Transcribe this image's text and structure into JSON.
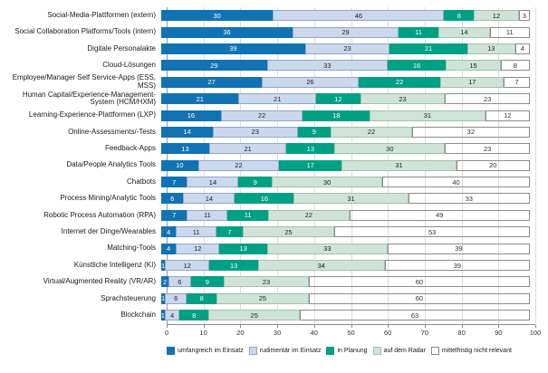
{
  "chart_data": {
    "type": "bar",
    "orientation": "horizontal",
    "stacked": true,
    "unit": "percent",
    "title": "",
    "xlabel": "",
    "ylabel": "",
    "xlim": [
      0,
      100
    ],
    "x_ticks": [
      0,
      10,
      20,
      30,
      40,
      50,
      60,
      70,
      80,
      90,
      100
    ],
    "grid": true,
    "legend_position": "bottom",
    "categories": [
      "Social-Media-Plattformen (extern)",
      "Social Collaboration Platforms/Tools (intern)",
      "Digitale Personalakte",
      "Cloud-Lösungen",
      "Employee/Manager Self Service-Apps (ESS, MSS)",
      "Human Capital/Experience-Manage­ment-System (HCM/HXM)",
      "Learning-Experience-Plattformen (LXP)",
      "Online-Assessments/-Tests",
      "Feedback-Apps",
      "Data/People Analytics Tools",
      "Chatbots",
      "Process Mining/Analytic Tools",
      "Robotic Process Automation (RPA)",
      "Internet der Dinge/Wearables",
      "Matching-Tools",
      "Künstliche Intelligenz (KI)",
      "Virtual/Augmented Reality (VR/AR)",
      "Sprachsteuerung",
      "Blockchain"
    ],
    "series": [
      {
        "key": "umfangreich-im-einsatz",
        "name": "umfangreich im Einsatz",
        "color": "#1173b3",
        "label_color": "#ffffff",
        "values": [
          30,
          36,
          39,
          29,
          27,
          21,
          16,
          14,
          13,
          10,
          7,
          6,
          7,
          4,
          4,
          1,
          2,
          1,
          1
        ]
      },
      {
        "key": "rudimentaer-im-einsatz",
        "name": "rudimentär im Einsatz",
        "color": "#ccd8ec",
        "border": "#8ea9cc",
        "label_color": "#1f1f1f",
        "values": [
          46,
          29,
          23,
          33,
          26,
          21,
          22,
          23,
          21,
          22,
          14,
          14,
          11,
          11,
          12,
          12,
          6,
          6,
          4
        ]
      },
      {
        "key": "in-planung",
        "name": "in Planung",
        "color": "#00a085",
        "label_color": "#ffffff",
        "values": [
          8,
          11,
          21,
          16,
          22,
          12,
          18,
          9,
          13,
          17,
          9,
          16,
          11,
          7,
          13,
          13,
          9,
          8,
          8
        ]
      },
      {
        "key": "auf-dem-radar",
        "name": "auf dem Radar",
        "color": "#cfe3d8",
        "border": "#9ec4ab",
        "label_color": "#1f1f1f",
        "values": [
          12,
          14,
          13,
          15,
          17,
          23,
          31,
          22,
          30,
          31,
          30,
          31,
          22,
          25,
          33,
          34,
          23,
          25,
          25
        ]
      },
      {
        "key": "mittelfristig-nicht-relevant",
        "name": "mittelfristig nicht relevant",
        "color": "#ffffff",
        "border": "#8c8c8c",
        "label_color": "#333333",
        "values": [
          3,
          11,
          4,
          8,
          7,
          23,
          12,
          32,
          23,
          20,
          40,
          33,
          49,
          53,
          39,
          39,
          60,
          60,
          63
        ]
      }
    ]
  }
}
